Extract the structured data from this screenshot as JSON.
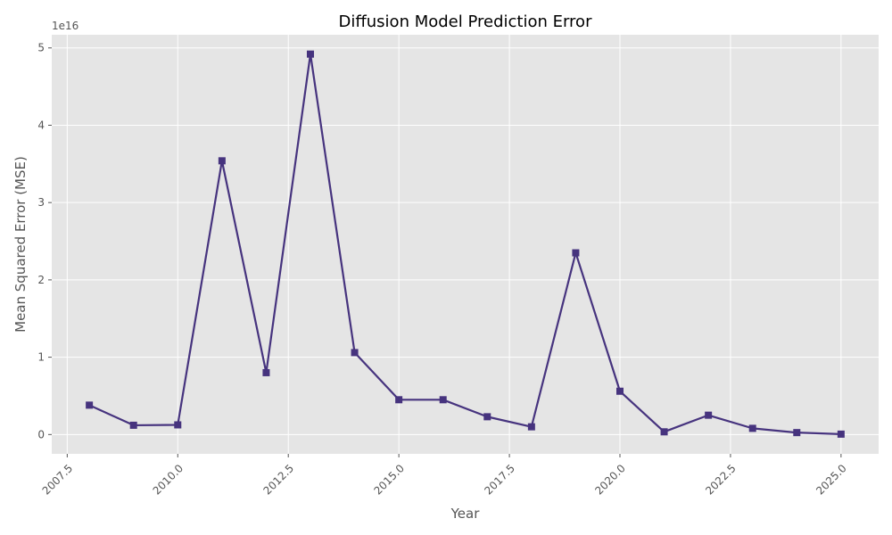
{
  "chart_data": {
    "type": "line",
    "title": "Diffusion Model Prediction Error",
    "xlabel": "Year",
    "ylabel": "Mean Squared Error (MSE)",
    "y_offset_label": "1e16",
    "xlim": [
      2007.15,
      2025.85
    ],
    "ylim": [
      -2500000000000000.0,
      5.17e+16
    ],
    "x_ticks": [
      2007.5,
      2010.0,
      2012.5,
      2015.0,
      2017.5,
      2020.0,
      2022.5,
      2025.0
    ],
    "x_tick_labels": [
      "2007.5",
      "2010.0",
      "2012.5",
      "2015.0",
      "2017.5",
      "2020.0",
      "2022.5",
      "2025.0"
    ],
    "y_ticks": [
      0,
      1e+16,
      2e+16,
      3e+16,
      4e+16,
      5e+16
    ],
    "y_tick_labels": [
      "0",
      "1",
      "2",
      "3",
      "4",
      "5"
    ],
    "grid": true,
    "series": [
      {
        "x": [
          2008,
          2009,
          2010,
          2011,
          2012,
          2013,
          2014,
          2015,
          2016,
          2017,
          2018,
          2019,
          2020,
          2021,
          2022,
          2023,
          2024,
          2025
        ],
        "y": [
          3800000000000000.0,
          1200000000000000.0,
          1250000000000000.0,
          3.54e+16,
          8000000000000000.0,
          4.92e+16,
          1.06e+16,
          4500000000000000.0,
          4500000000000000.0,
          2300000000000000.0,
          1000000000000000.0,
          2.35e+16,
          5600000000000000.0,
          350000000000000.0,
          2500000000000000.0,
          800000000000000.0,
          250000000000000.0,
          50000000000000.0
        ],
        "color": "#46337e",
        "marker": "square"
      }
    ]
  },
  "colors": {
    "plot_bg": "#e5e5e5",
    "grid": "#ffffff",
    "line": "#46337e"
  }
}
